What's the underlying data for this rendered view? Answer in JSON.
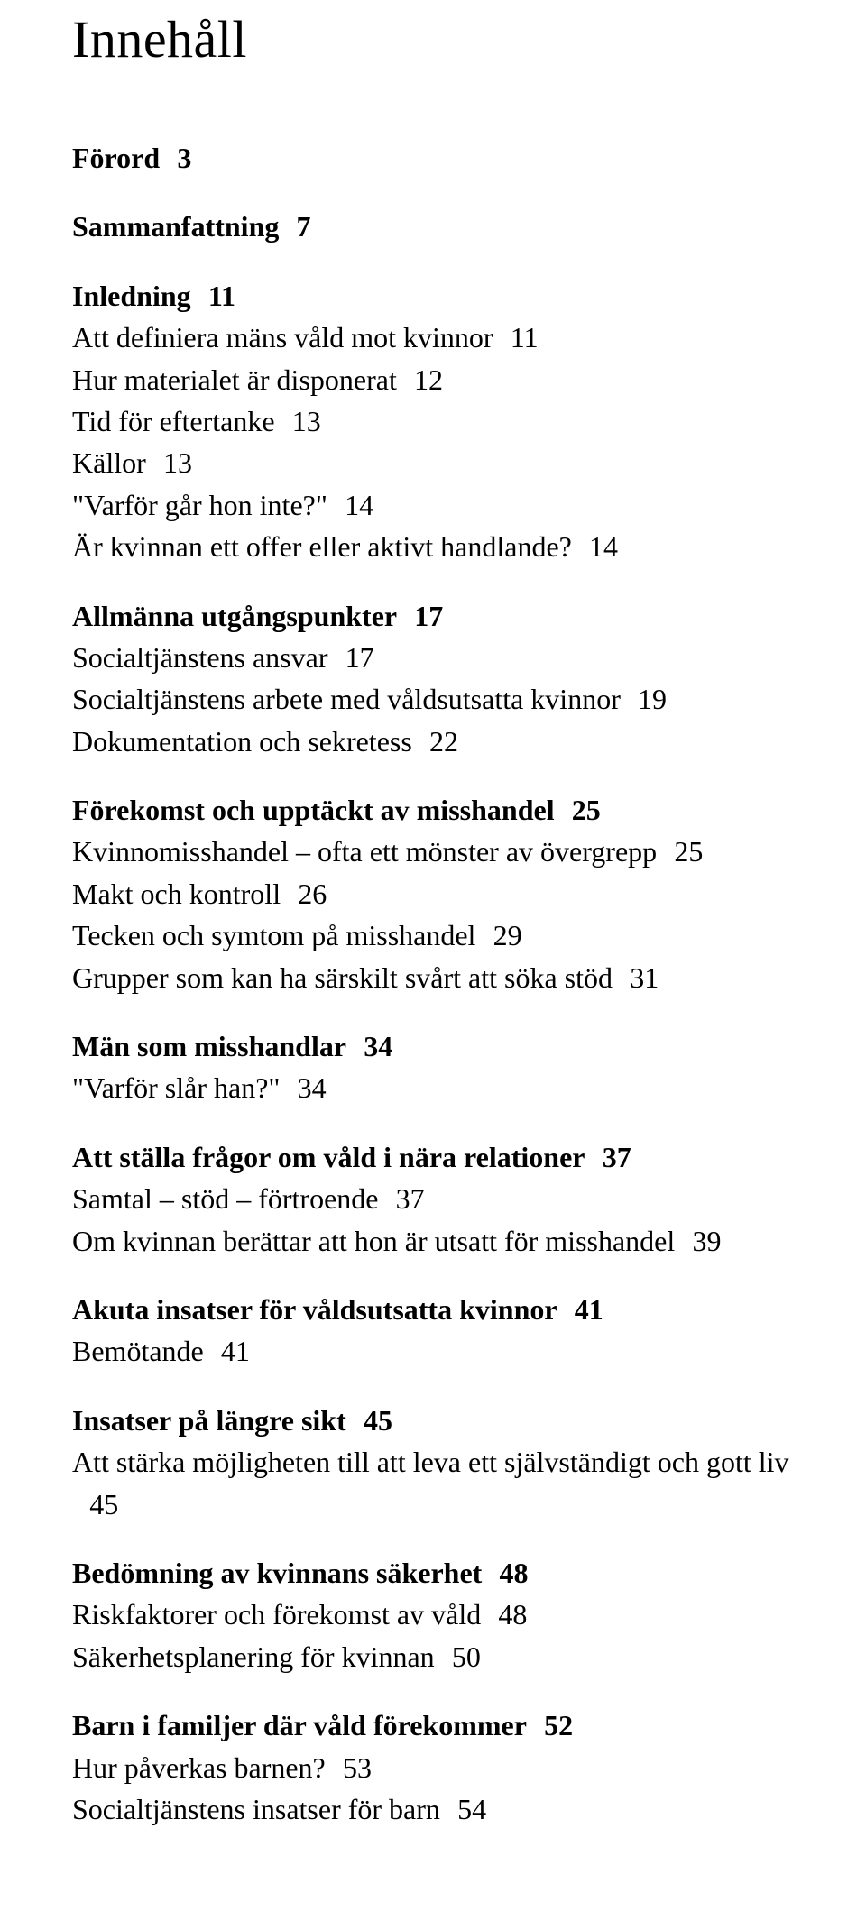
{
  "title": "Innehåll",
  "typography": {
    "title_fontsize": 58,
    "body_fontsize": 32,
    "font_family": "Times New Roman",
    "color": "#000000",
    "background": "#ffffff"
  },
  "sections": [
    {
      "head": {
        "label": "Förord",
        "page": "3"
      },
      "items": []
    },
    {
      "head": {
        "label": "Sammanfattning",
        "page": "7"
      },
      "items": []
    },
    {
      "head": {
        "label": "Inledning",
        "page": "11"
      },
      "items": [
        {
          "label": "Att definiera mäns våld mot kvinnor",
          "page": "11"
        },
        {
          "label": "Hur materialet är disponerat",
          "page": "12"
        },
        {
          "label": "Tid för eftertanke",
          "page": "13"
        },
        {
          "label": "Källor",
          "page": "13"
        },
        {
          "label": "\"Varför går hon inte?\"",
          "page": "14"
        },
        {
          "label": "Är kvinnan ett offer eller aktivt handlande?",
          "page": "14"
        }
      ]
    },
    {
      "head": {
        "label": "Allmänna utgångspunkter",
        "page": "17"
      },
      "items": [
        {
          "label": "Socialtjänstens ansvar",
          "page": "17"
        },
        {
          "label": "Socialtjänstens arbete med våldsutsatta kvinnor",
          "page": "19"
        },
        {
          "label": "Dokumentation och sekretess",
          "page": "22"
        }
      ]
    },
    {
      "head": {
        "label": "Förekomst och upptäckt av misshandel",
        "page": "25"
      },
      "items": [
        {
          "label": "Kvinnomisshandel – ofta ett mönster av övergrepp",
          "page": "25"
        },
        {
          "label": "Makt och kontroll",
          "page": "26"
        },
        {
          "label": "Tecken och symtom på misshandel",
          "page": "29"
        },
        {
          "label": "Grupper som kan ha särskilt svårt att söka stöd",
          "page": "31"
        }
      ]
    },
    {
      "head": {
        "label": "Män som misshandlar",
        "page": "34"
      },
      "items": [
        {
          "label": "\"Varför slår han?\"",
          "page": "34"
        }
      ]
    },
    {
      "head": {
        "label": "Att ställa frågor om våld i nära relationer",
        "page": "37"
      },
      "items": [
        {
          "label": "Samtal – stöd – förtroende",
          "page": "37"
        },
        {
          "label": "Om kvinnan berättar att hon är utsatt för misshandel",
          "page": "39"
        }
      ]
    },
    {
      "head": {
        "label": "Akuta insatser för våldsutsatta kvinnor",
        "page": "41"
      },
      "items": [
        {
          "label": "Bemötande",
          "page": "41"
        }
      ]
    },
    {
      "head": {
        "label": "Insatser på längre sikt",
        "page": "45"
      },
      "items": [
        {
          "label": "Att stärka möjligheten till att leva ett självständigt och gott liv",
          "page": "45"
        }
      ]
    },
    {
      "head": {
        "label": "Bedömning av kvinnans säkerhet",
        "page": "48"
      },
      "items": [
        {
          "label": "Riskfaktorer och förekomst av våld",
          "page": "48"
        },
        {
          "label": "Säkerhetsplanering för kvinnan",
          "page": "50"
        }
      ]
    },
    {
      "head": {
        "label": "Barn i familjer där våld förekommer",
        "page": "52"
      },
      "items": [
        {
          "label": "Hur påverkas barnen?",
          "page": "53"
        },
        {
          "label": "Socialtjänstens insatser för barn",
          "page": "54"
        }
      ]
    }
  ]
}
